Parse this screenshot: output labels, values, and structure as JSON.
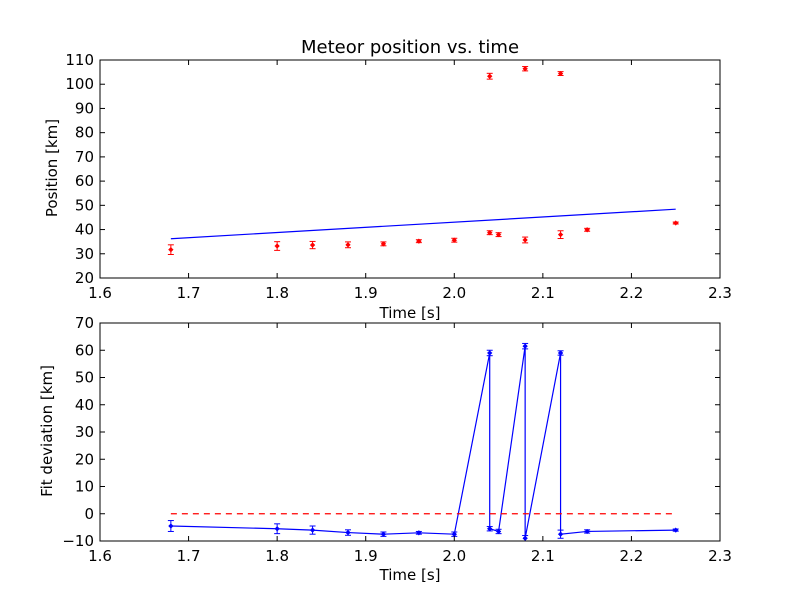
{
  "chart_data": [
    {
      "type": "scatter",
      "title": "Meteor position vs. time",
      "xlabel": "Time [s]",
      "ylabel": "Position [km]",
      "xlim": [
        1.6,
        2.3
      ],
      "ylim": [
        20,
        110
      ],
      "xticks": [
        1.6,
        1.7,
        1.8,
        1.9,
        2.0,
        2.1,
        2.2,
        2.3
      ],
      "yticks": [
        20,
        30,
        40,
        50,
        60,
        70,
        80,
        90,
        100,
        110
      ],
      "xtick_labels": [
        "1.6",
        "1.7",
        "1.8",
        "1.9",
        "2.0",
        "2.1",
        "2.2",
        "2.3"
      ],
      "ytick_labels": [
        "20",
        "30",
        "40",
        "50",
        "60",
        "70",
        "80",
        "90",
        "100",
        "110"
      ],
      "grid": false,
      "series": [
        {
          "kind": "errorbar-points",
          "color": "#ff0000",
          "points": [
            {
              "x": 1.68,
              "y": 31.7,
              "err": 2.0
            },
            {
              "x": 1.8,
              "y": 33.2,
              "err": 1.8
            },
            {
              "x": 1.84,
              "y": 33.6,
              "err": 1.5
            },
            {
              "x": 1.88,
              "y": 33.7,
              "err": 1.2
            },
            {
              "x": 1.92,
              "y": 34.1,
              "err": 0.8
            },
            {
              "x": 1.96,
              "y": 35.2,
              "err": 0.6
            },
            {
              "x": 2.0,
              "y": 35.6,
              "err": 0.8
            },
            {
              "x": 2.04,
              "y": 38.7,
              "err": 0.8
            },
            {
              "x": 2.04,
              "y": 103.3,
              "err": 1.2
            },
            {
              "x": 2.05,
              "y": 37.9,
              "err": 0.8
            },
            {
              "x": 2.08,
              "y": 35.7,
              "err": 1.2
            },
            {
              "x": 2.08,
              "y": 106.4,
              "err": 0.9
            },
            {
              "x": 2.12,
              "y": 37.9,
              "err": 1.6
            },
            {
              "x": 2.12,
              "y": 104.4,
              "err": 0.8
            },
            {
              "x": 2.15,
              "y": 39.9,
              "err": 0.6
            },
            {
              "x": 2.25,
              "y": 42.7,
              "err": 0.4
            }
          ]
        },
        {
          "kind": "line",
          "color": "#0000ff",
          "points": [
            {
              "x": 1.68,
              "y": 36.2
            },
            {
              "x": 2.25,
              "y": 48.4
            }
          ]
        }
      ]
    },
    {
      "type": "line",
      "title": "",
      "xlabel": "Time [s]",
      "ylabel": "Fit deviation [km]",
      "xlim": [
        1.6,
        2.3
      ],
      "ylim": [
        -10,
        70
      ],
      "xticks": [
        1.6,
        1.7,
        1.8,
        1.9,
        2.0,
        2.1,
        2.2,
        2.3
      ],
      "yticks": [
        -10,
        0,
        10,
        20,
        30,
        40,
        50,
        60,
        70
      ],
      "xtick_labels": [
        "1.6",
        "1.7",
        "1.8",
        "1.9",
        "2.0",
        "2.1",
        "2.2",
        "2.3"
      ],
      "ytick_labels": [
        "−10",
        "0",
        "10",
        "20",
        "30",
        "40",
        "50",
        "60",
        "70"
      ],
      "grid": false,
      "series": [
        {
          "kind": "errorbar-line",
          "color": "#0000ff",
          "points": [
            {
              "x": 1.68,
              "y": -4.5,
              "err": 2.0
            },
            {
              "x": 1.8,
              "y": -5.5,
              "err": 1.8
            },
            {
              "x": 1.84,
              "y": -6.0,
              "err": 1.5
            },
            {
              "x": 1.88,
              "y": -6.9,
              "err": 1.0
            },
            {
              "x": 1.92,
              "y": -7.5,
              "err": 0.8
            },
            {
              "x": 1.96,
              "y": -7.0,
              "err": 0.5
            },
            {
              "x": 2.0,
              "y": -7.5,
              "err": 0.8
            },
            {
              "x": 2.04,
              "y": 59.0,
              "err": 1.0
            },
            {
              "x": 2.04,
              "y": -5.5,
              "err": 0.8
            },
            {
              "x": 2.05,
              "y": -6.5,
              "err": 0.8
            },
            {
              "x": 2.08,
              "y": 61.5,
              "err": 1.0
            },
            {
              "x": 2.08,
              "y": -9.0,
              "err": 1.0
            },
            {
              "x": 2.12,
              "y": 59.0,
              "err": 0.8
            },
            {
              "x": 2.12,
              "y": -7.5,
              "err": 1.5
            },
            {
              "x": 2.15,
              "y": -6.5,
              "err": 0.6
            },
            {
              "x": 2.25,
              "y": -6.0,
              "err": 0.4
            }
          ]
        },
        {
          "kind": "dashed-line",
          "color": "#ff0000",
          "points": [
            {
              "x": 1.68,
              "y": 0
            },
            {
              "x": 2.25,
              "y": 0
            }
          ]
        }
      ]
    }
  ]
}
